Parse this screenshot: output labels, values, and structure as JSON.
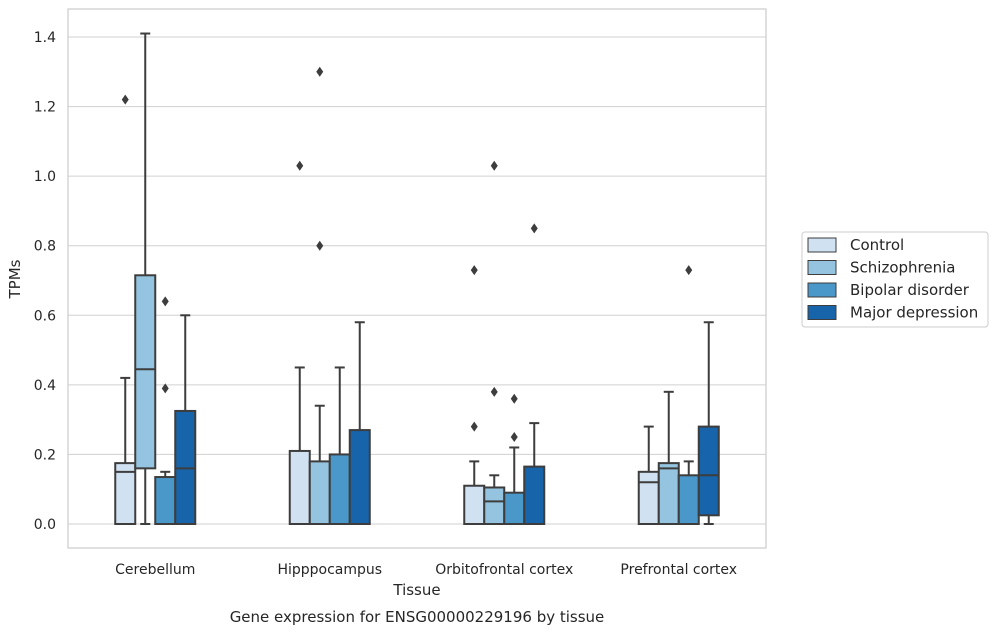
{
  "chart_data": {
    "type": "box",
    "title": "Gene expression for ENSG00000229196 by tissue",
    "xlabel": "Tissue",
    "ylabel": "TPMs",
    "ylim": [
      -0.07,
      1.48
    ],
    "yticks": [
      "0.0",
      "0.2",
      "0.4",
      "0.6",
      "0.8",
      "1.0",
      "1.2",
      "1.4"
    ],
    "grid": "horizontal",
    "legend_position": "right",
    "categories": [
      "Cerebellum",
      "Hipppocampus",
      "Orbitofrontal cortex",
      "Prefrontal cortex"
    ],
    "series": [
      {
        "name": "Control",
        "color": "#d0e1f2",
        "boxes": [
          {
            "q1": 0.0,
            "median": 0.15,
            "q3": 0.175,
            "whisker_low": 0.0,
            "whisker_high": 0.42,
            "outliers": [
              1.22
            ]
          },
          {
            "q1": 0.0,
            "median": 0.0,
            "q3": 0.21,
            "whisker_low": 0.0,
            "whisker_high": 0.45,
            "outliers": [
              1.03
            ]
          },
          {
            "q1": 0.0,
            "median": 0.0,
            "q3": 0.11,
            "whisker_low": 0.0,
            "whisker_high": 0.18,
            "outliers": [
              0.28,
              0.73
            ]
          },
          {
            "q1": 0.0,
            "median": 0.12,
            "q3": 0.15,
            "whisker_low": 0.0,
            "whisker_high": 0.28,
            "outliers": []
          }
        ]
      },
      {
        "name": "Schizophrenia",
        "color": "#94c4df",
        "boxes": [
          {
            "q1": 0.16,
            "median": 0.445,
            "q3": 0.715,
            "whisker_low": 0.0,
            "whisker_high": 1.41,
            "outliers": []
          },
          {
            "q1": 0.0,
            "median": 0.0,
            "q3": 0.18,
            "whisker_low": 0.0,
            "whisker_high": 0.34,
            "outliers": [
              0.8,
              1.3
            ]
          },
          {
            "q1": 0.0,
            "median": 0.065,
            "q3": 0.105,
            "whisker_low": 0.0,
            "whisker_high": 0.14,
            "outliers": [
              0.38,
              1.03
            ]
          },
          {
            "q1": 0.0,
            "median": 0.16,
            "q3": 0.175,
            "whisker_low": 0.0,
            "whisker_high": 0.38,
            "outliers": []
          }
        ]
      },
      {
        "name": "Bipolar disorder",
        "color": "#4a98c9",
        "boxes": [
          {
            "q1": 0.0,
            "median": 0.0,
            "q3": 0.135,
            "whisker_low": 0.0,
            "whisker_high": 0.15,
            "outliers": [
              0.39,
              0.64
            ]
          },
          {
            "q1": 0.0,
            "median": 0.0,
            "q3": 0.2,
            "whisker_low": 0.0,
            "whisker_high": 0.45,
            "outliers": []
          },
          {
            "q1": 0.0,
            "median": 0.0,
            "q3": 0.09,
            "whisker_low": 0.0,
            "whisker_high": 0.22,
            "outliers": [
              0.25,
              0.36
            ]
          },
          {
            "q1": 0.0,
            "median": 0.0,
            "q3": 0.14,
            "whisker_low": 0.0,
            "whisker_high": 0.18,
            "outliers": [
              0.73
            ]
          }
        ]
      },
      {
        "name": "Major depression",
        "color": "#1764ab",
        "boxes": [
          {
            "q1": 0.0,
            "median": 0.16,
            "q3": 0.325,
            "whisker_low": 0.0,
            "whisker_high": 0.6,
            "outliers": []
          },
          {
            "q1": 0.0,
            "median": 0.0,
            "q3": 0.27,
            "whisker_low": 0.0,
            "whisker_high": 0.58,
            "outliers": []
          },
          {
            "q1": 0.0,
            "median": 0.0,
            "q3": 0.165,
            "whisker_low": 0.0,
            "whisker_high": 0.29,
            "outliers": [
              0.85
            ]
          },
          {
            "q1": 0.025,
            "median": 0.14,
            "q3": 0.28,
            "whisker_low": 0.0,
            "whisker_high": 0.58,
            "outliers": []
          }
        ]
      }
    ]
  }
}
